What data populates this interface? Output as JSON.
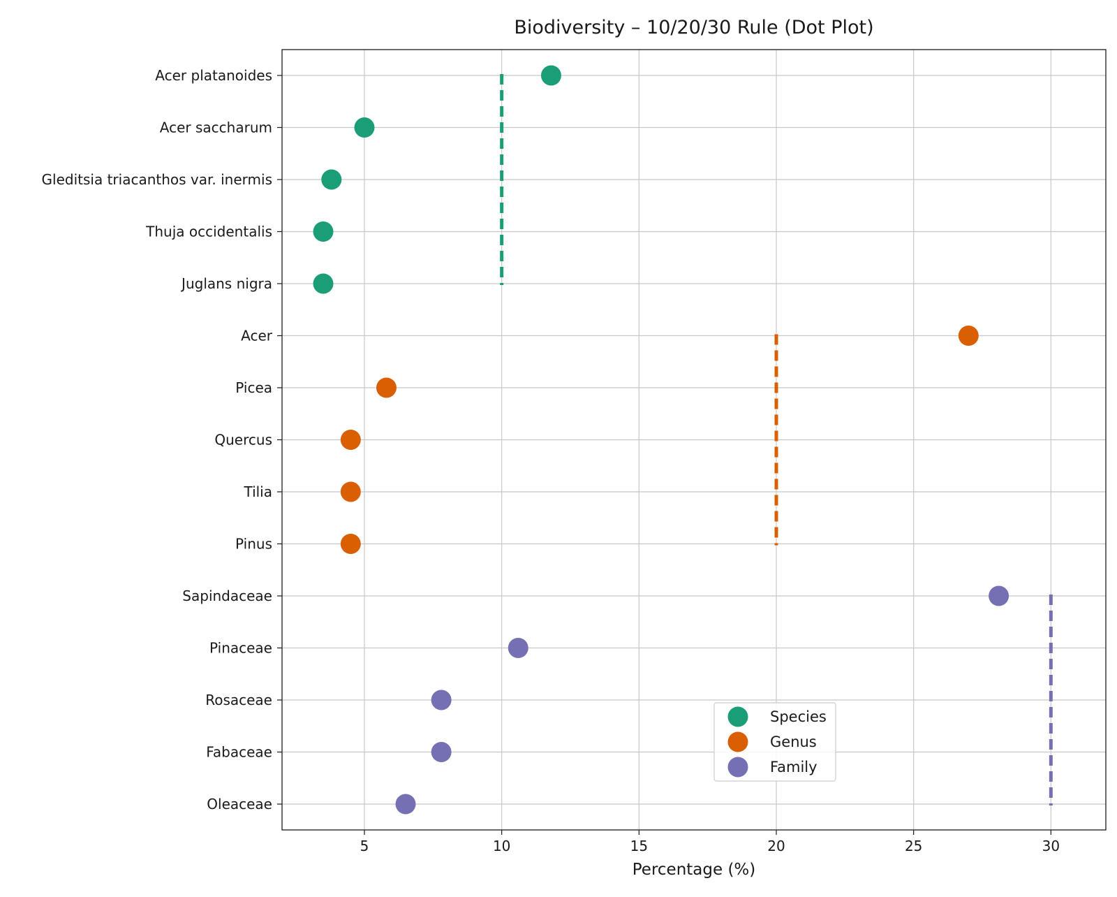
{
  "chart_data": {
    "type": "scatter",
    "title": "Biodiversity – 10/20/30 Rule (Dot Plot)",
    "xlabel": "Percentage (%)",
    "ylabel": "",
    "xlim": [
      2,
      32
    ],
    "xticks": [
      5,
      10,
      15,
      20,
      25,
      30
    ],
    "grid": true,
    "legend_position": "lower-center",
    "categories": [
      "Acer platanoides",
      "Acer saccharum",
      "Gleditsia triacanthos var. inermis",
      "Thuja occidentalis",
      "Juglans nigra",
      "Acer",
      "Picea",
      "Quercus",
      "Tilia",
      "Pinus",
      "Sapindaceae",
      "Pinaceae",
      "Rosaceae",
      "Fabaceae",
      "Oleaceae"
    ],
    "series": [
      {
        "name": "Species",
        "color": "#1b9e77",
        "threshold": 10,
        "points": [
          {
            "category": "Acer platanoides",
            "value": 11.8
          },
          {
            "category": "Acer saccharum",
            "value": 5.0
          },
          {
            "category": "Gleditsia triacanthos var. inermis",
            "value": 3.8
          },
          {
            "category": "Thuja occidentalis",
            "value": 3.5
          },
          {
            "category": "Juglans nigra",
            "value": 3.5
          }
        ]
      },
      {
        "name": "Genus",
        "color": "#d95f02",
        "threshold": 20,
        "points": [
          {
            "category": "Acer",
            "value": 27.0
          },
          {
            "category": "Picea",
            "value": 5.8
          },
          {
            "category": "Quercus",
            "value": 4.5
          },
          {
            "category": "Tilia",
            "value": 4.5
          },
          {
            "category": "Pinus",
            "value": 4.5
          }
        ]
      },
      {
        "name": "Family",
        "color": "#7570b3",
        "threshold": 30,
        "points": [
          {
            "category": "Sapindaceae",
            "value": 28.1
          },
          {
            "category": "Pinaceae",
            "value": 10.6
          },
          {
            "category": "Rosaceae",
            "value": 7.8
          },
          {
            "category": "Fabaceae",
            "value": 7.8
          },
          {
            "category": "Oleaceae",
            "value": 6.5
          }
        ]
      }
    ]
  }
}
